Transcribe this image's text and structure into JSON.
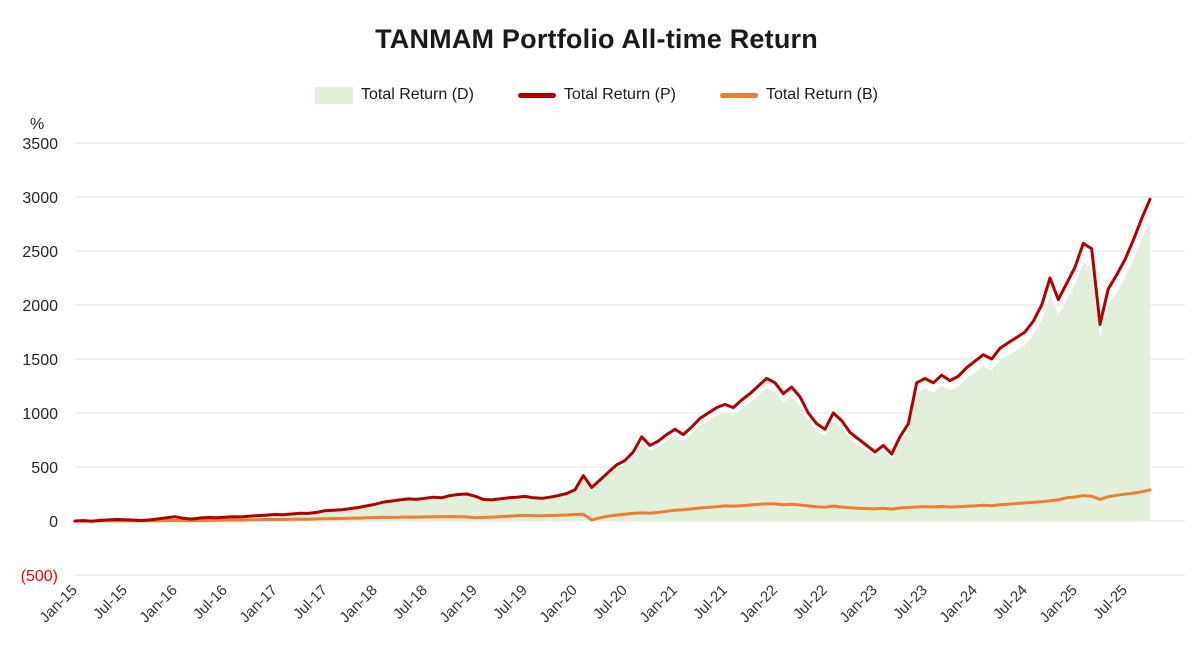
{
  "chart_data": {
    "type": "line",
    "title": "TANMAM Portfolio All-time Return",
    "ylabel": "%",
    "xlabel": "",
    "ylim": [
      -500,
      3500
    ],
    "xlim": [
      2015.0,
      2026.1
    ],
    "grid": "horizontal",
    "grid_color": "#e3e3e3",
    "legend_position": "top",
    "x_start_year": 2015.0,
    "x_interval_years": 0.0833333,
    "yticks": [
      {
        "value": 3500,
        "label": "3500"
      },
      {
        "value": 3000,
        "label": "3000"
      },
      {
        "value": 2500,
        "label": "2500"
      },
      {
        "value": 2000,
        "label": "2000"
      },
      {
        "value": 1500,
        "label": "1500"
      },
      {
        "value": 1000,
        "label": "1000"
      },
      {
        "value": 500,
        "label": "500"
      },
      {
        "value": 0,
        "label": "0"
      },
      {
        "value": -500,
        "label": "(500)",
        "color": "#ff0000"
      }
    ],
    "xticks": [
      {
        "value": 2015.0,
        "label": "Jan-15"
      },
      {
        "value": 2015.5,
        "label": "Jul-15"
      },
      {
        "value": 2016.0,
        "label": "Jan-16"
      },
      {
        "value": 2016.5,
        "label": "Jul-16"
      },
      {
        "value": 2017.0,
        "label": "Jan-17"
      },
      {
        "value": 2017.5,
        "label": "Jul-17"
      },
      {
        "value": 2018.0,
        "label": "Jan-18"
      },
      {
        "value": 2018.5,
        "label": "Jul-18"
      },
      {
        "value": 2019.0,
        "label": "Jan-19"
      },
      {
        "value": 2019.5,
        "label": "Jul-19"
      },
      {
        "value": 2020.0,
        "label": "Jan-20"
      },
      {
        "value": 2020.5,
        "label": "Jul-20"
      },
      {
        "value": 2021.0,
        "label": "Jan-21"
      },
      {
        "value": 2021.5,
        "label": "Jul-21"
      },
      {
        "value": 2022.0,
        "label": "Jan-22"
      },
      {
        "value": 2022.5,
        "label": "Jul-22"
      },
      {
        "value": 2023.0,
        "label": "Jan-23"
      },
      {
        "value": 2023.5,
        "label": "Jul-23"
      },
      {
        "value": 2024.0,
        "label": "Jan-24"
      },
      {
        "value": 2024.5,
        "label": "Jul-24"
      },
      {
        "value": 2025.0,
        "label": "Jan-25"
      },
      {
        "value": 2025.5,
        "label": "Jul-25"
      }
    ],
    "series": [
      {
        "name": "Total Return (D)",
        "style": "area",
        "color": "#e2efda",
        "values": [
          0,
          4,
          -3,
          6,
          9,
          13,
          11,
          7,
          5,
          9,
          19,
          28,
          37,
          23,
          17,
          26,
          30,
          28,
          33,
          37,
          35,
          42,
          47,
          51,
          56,
          54,
          60,
          67,
          65,
          74,
          88,
          93,
          98,
          107,
          116,
          130,
          144,
          163,
          172,
          181,
          191,
          186,
          195,
          205,
          200,
          219,
          228,
          233,
          214,
          186,
          181,
          191,
          200,
          205,
          212,
          200,
          195,
          205,
          219,
          237,
          270,
          391,
          288,
          353,
          419,
          484,
          521,
          595,
          725,
          651,
          688,
          744,
          791,
          744,
          809,
          884,
          930,
          977,
          1004,
          977,
          1042,
          1097,
          1163,
          1228,
          1190,
          1097,
          1153,
          1070,
          930,
          837,
          791,
          930,
          865,
          763,
          707,
          651,
          595,
          651,
          577,
          725,
          837,
          1190,
          1228,
          1190,
          1256,
          1209,
          1246,
          1321,
          1376,
          1432,
          1395,
          1488,
          1535,
          1581,
          1628,
          1721,
          1860,
          2093,
          1907,
          2046,
          2186,
          2390,
          2344,
          1693,
          2000,
          2120,
          2251,
          2418,
          2604,
          2771
        ]
      },
      {
        "name": "Total Return (P)",
        "style": "line",
        "color": "#b00000",
        "width": 3,
        "values": [
          0,
          4,
          -3,
          6,
          10,
          14,
          12,
          8,
          5,
          10,
          20,
          30,
          40,
          25,
          18,
          28,
          32,
          30,
          35,
          40,
          38,
          45,
          50,
          55,
          60,
          58,
          65,
          72,
          70,
          80,
          95,
          100,
          105,
          115,
          125,
          140,
          155,
          175,
          185,
          195,
          205,
          200,
          210,
          220,
          215,
          235,
          245,
          250,
          230,
          200,
          195,
          205,
          215,
          220,
          228,
          215,
          210,
          220,
          235,
          255,
          290,
          420,
          310,
          380,
          450,
          520,
          560,
          640,
          780,
          700,
          740,
          800,
          850,
          800,
          870,
          950,
          1000,
          1050,
          1080,
          1050,
          1120,
          1180,
          1250,
          1320,
          1280,
          1180,
          1240,
          1150,
          1000,
          900,
          850,
          1000,
          930,
          820,
          760,
          700,
          640,
          700,
          620,
          780,
          900,
          1280,
          1320,
          1280,
          1350,
          1300,
          1340,
          1420,
          1480,
          1540,
          1500,
          1600,
          1650,
          1700,
          1750,
          1850,
          2000,
          2250,
          2050,
          2200,
          2350,
          2570,
          2520,
          1820,
          2150,
          2280,
          2420,
          2600,
          2800,
          2980
        ]
      },
      {
        "name": "Total Return (B)",
        "style": "line",
        "color": "#ed7d31",
        "width": 3,
        "values": [
          0,
          1,
          -1,
          2,
          3,
          4,
          3,
          2,
          1,
          2,
          3,
          5,
          6,
          4,
          3,
          5,
          7,
          6,
          8,
          9,
          8,
          10,
          12,
          14,
          15,
          14,
          16,
          18,
          17,
          19,
          21,
          22,
          23,
          25,
          27,
          30,
          32,
          34,
          33,
          35,
          37,
          36,
          38,
          40,
          39,
          42,
          40,
          38,
          30,
          33,
          36,
          40,
          44,
          48,
          52,
          50,
          48,
          50,
          53,
          56,
          60,
          62,
          10,
          30,
          45,
          55,
          62,
          70,
          75,
          72,
          80,
          90,
          100,
          105,
          112,
          120,
          126,
          132,
          140,
          138,
          142,
          148,
          154,
          160,
          158,
          150,
          155,
          148,
          140,
          132,
          128,
          138,
          130,
          122,
          118,
          115,
          112,
          118,
          110,
          120,
          126,
          130,
          133,
          130,
          134,
          130,
          132,
          136,
          140,
          145,
          142,
          150,
          155,
          162,
          168,
          172,
          178,
          188,
          196,
          215,
          222,
          235,
          230,
          200,
          225,
          238,
          248,
          258,
          270,
          288
        ]
      }
    ]
  }
}
